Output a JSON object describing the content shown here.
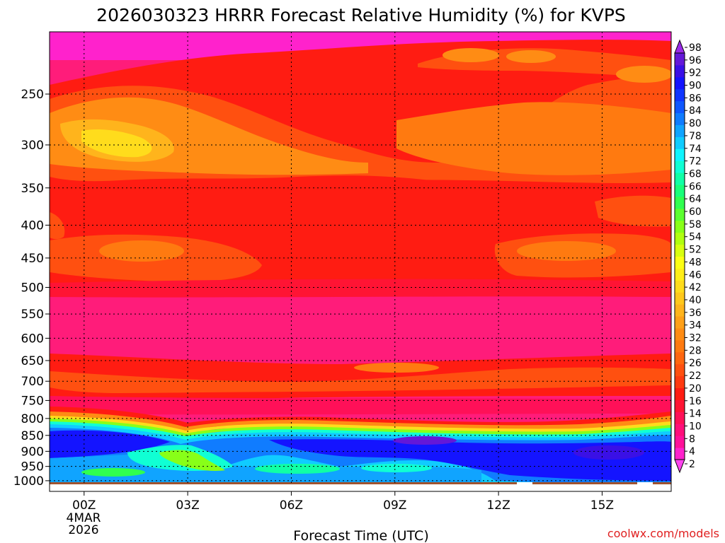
{
  "chart_data": {
    "type": "heatmap",
    "title": "2026030323 HRRR Forecast Relative Humidity (%) for KVPS",
    "xlabel": "Forecast Time (UTC)",
    "ylabel": "",
    "x_ticks": [
      "00Z",
      "03Z",
      "06Z",
      "09Z",
      "12Z",
      "15Z"
    ],
    "x_tick_hours": [
      0,
      3,
      6,
      9,
      12,
      15
    ],
    "x_date_line1": "4MAR",
    "x_date_line2": "2026",
    "x_range_hours": [
      -1,
      17
    ],
    "y_ticks": [
      "250",
      "300",
      "350",
      "400",
      "450",
      "500",
      "550",
      "600",
      "650",
      "700",
      "750",
      "800",
      "850",
      "900",
      "950",
      "1000"
    ],
    "y_tick_values": [
      250,
      300,
      350,
      400,
      450,
      500,
      550,
      600,
      650,
      700,
      750,
      800,
      850,
      900,
      950,
      1000
    ],
    "y_range": [
      200,
      1013
    ],
    "y_axis": "log-pressure, inverted",
    "grid": true,
    "colorbar": {
      "levels": [
        2,
        4,
        8,
        10,
        14,
        16,
        20,
        22,
        26,
        28,
        32,
        34,
        36,
        40,
        42,
        46,
        48,
        52,
        54,
        58,
        60,
        64,
        66,
        68,
        72,
        74,
        78,
        80,
        84,
        86,
        90,
        92,
        96,
        98
      ],
      "labels": [
        "2",
        "4",
        "8",
        "10",
        "14",
        "16",
        "20",
        "22",
        "26",
        "28",
        "32",
        "34",
        "36",
        "40",
        "42",
        "46",
        "48",
        "52",
        "54",
        "58",
        "60",
        "64",
        "66",
        "68",
        "72",
        "74",
        "78",
        "80",
        "84",
        "86",
        "90",
        "92",
        "96",
        "98"
      ],
      "colors": [
        "#ff44ee",
        "#ff22cc",
        "#ff1199",
        "#ff0f7a",
        "#ff1058",
        "#ff1434",
        "#ff1c12",
        "#ff3a10",
        "#ff5010",
        "#ff6610",
        "#ff7a10",
        "#ff8c14",
        "#ffa018",
        "#ffb41c",
        "#ffc81c",
        "#ffdc1c",
        "#ffee18",
        "#fcff14",
        "#d8ff10",
        "#b0ff10",
        "#88ff18",
        "#5cff30",
        "#30ff50",
        "#18ff7a",
        "#10ffa6",
        "#10ffd4",
        "#10f4ff",
        "#10ccff",
        "#10a4ff",
        "#107cff",
        "#1058ff",
        "#1036ff",
        "#1414ff",
        "#3a10e6",
        "#6418d8",
        "#9a2ae8"
      ]
    },
    "annotation": "coolwx.com/models"
  }
}
